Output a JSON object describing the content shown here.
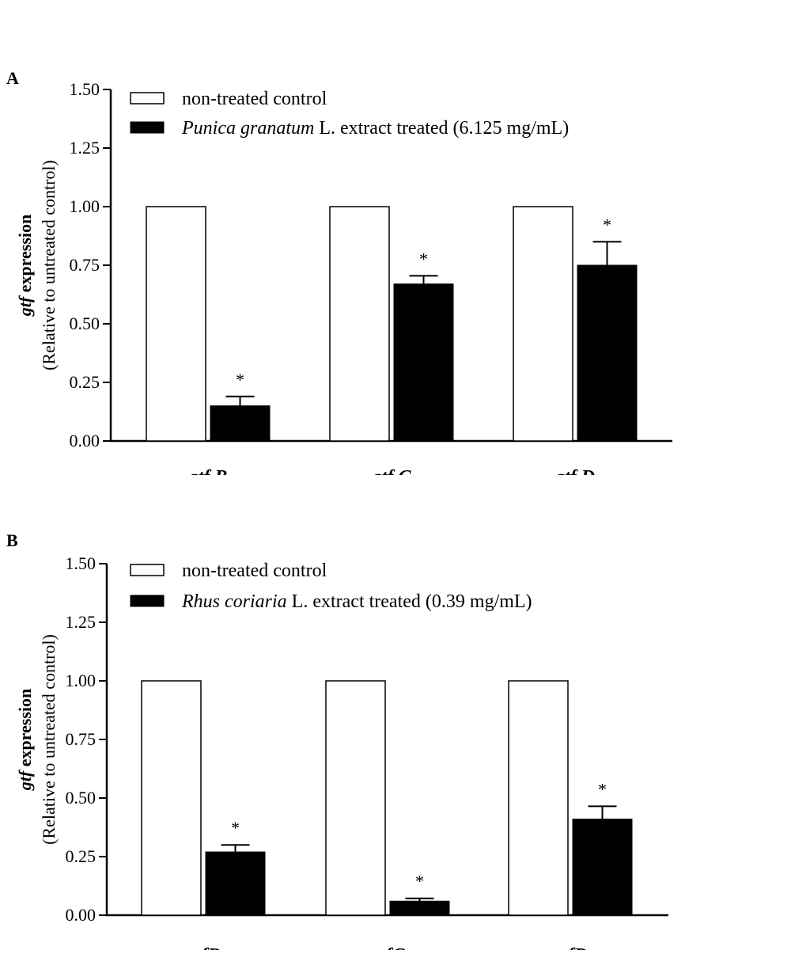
{
  "chart_data": [
    {
      "type": "bar",
      "panel": "A",
      "ylabel_gene": "gtf",
      "ylabel_word": "expression",
      "ylabel_sub": "(Relative to untreated control)",
      "ylim": [
        0,
        1.5
      ],
      "yticks": [
        "0.00",
        "0.25",
        "0.50",
        "0.75",
        "1.00",
        "1.25",
        "1.50"
      ],
      "categories": [
        "gtf B",
        "gtf C",
        "gtf D"
      ],
      "legend_position": "top-left",
      "series": [
        {
          "name": "non-treated control",
          "values": [
            1.0,
            1.0,
            1.0
          ],
          "errors": [
            0,
            0,
            0
          ],
          "color": "#ffffff",
          "significance": [
            "",
            "",
            ""
          ]
        },
        {
          "name": "Punica granatum L. extract treated (6.125 mg/mL)",
          "name_italic": "Punica granatum",
          "name_rest": " L. extract treated (6.125 mg/mL)",
          "values": [
            0.15,
            0.67,
            0.75
          ],
          "errors": [
            0.04,
            0.035,
            0.1
          ],
          "color": "#000000",
          "significance": [
            "*",
            "*",
            "*"
          ]
        }
      ]
    },
    {
      "type": "bar",
      "panel": "B",
      "ylabel_gene": "gtf",
      "ylabel_word": "expression",
      "ylabel_sub": "(Relative to untreated control)",
      "ylim": [
        0,
        1.5
      ],
      "yticks": [
        "0.00",
        "0.25",
        "0.50",
        "0.75",
        "1.00",
        "1.25",
        "1.50"
      ],
      "categories": [
        "gtfB",
        "gtfC",
        "gtfD"
      ],
      "legend_position": "top-left",
      "series": [
        {
          "name": "non-treated control",
          "values": [
            1.0,
            1.0,
            1.0
          ],
          "errors": [
            0,
            0,
            0
          ],
          "color": "#ffffff",
          "significance": [
            "",
            "",
            ""
          ]
        },
        {
          "name": "Rhus coriaria L. extract treated (0.39 mg/mL)",
          "name_italic": "Rhus coriaria",
          "name_rest": " L. extract treated (0.39 mg/mL)",
          "values": [
            0.27,
            0.06,
            0.41
          ],
          "errors": [
            0.03,
            0.012,
            0.055
          ],
          "color": "#000000",
          "significance": [
            "*",
            "*",
            "*"
          ]
        }
      ]
    }
  ]
}
